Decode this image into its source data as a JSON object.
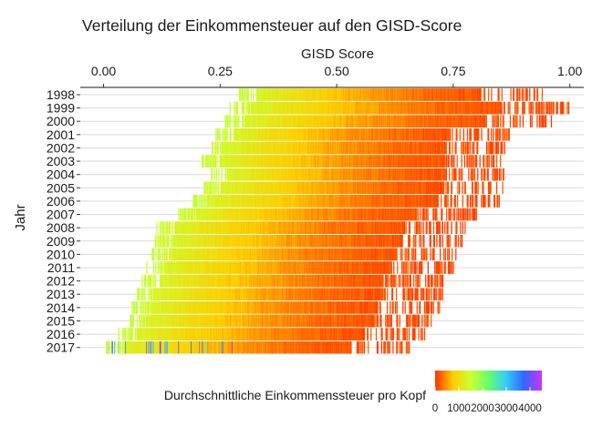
{
  "chart_data": {
    "type": "heatmap",
    "title": "Verteilung der Einkommensteuer auf den GISD-Score",
    "xlabel": "GISD Score",
    "ylabel": "Jahr",
    "x_axis_position": "top",
    "xlim": [
      -0.05,
      1.03
    ],
    "x_ticks": [
      0.0,
      0.25,
      0.5,
      0.75,
      1.0
    ],
    "x_tick_labels": [
      "0.00",
      "0.25",
      "0.50",
      "0.75",
      "1.00"
    ],
    "grid": "horizontal",
    "years": [
      "1998",
      "1999",
      "2000",
      "2001",
      "2002",
      "2003",
      "2004",
      "2005",
      "2006",
      "2007",
      "2008",
      "2009",
      "2010",
      "2011",
      "2012",
      "2013",
      "2014",
      "2015",
      "2016",
      "2017"
    ],
    "score_ranges": [
      {
        "year": "1998",
        "min": 0.29,
        "max": 0.94
      },
      {
        "year": "1999",
        "min": 0.27,
        "max": 1.0
      },
      {
        "year": "2000",
        "min": 0.26,
        "max": 0.96
      },
      {
        "year": "2001",
        "min": 0.24,
        "max": 0.87
      },
      {
        "year": "2002",
        "min": 0.23,
        "max": 0.86
      },
      {
        "year": "2003",
        "min": 0.21,
        "max": 0.86
      },
      {
        "year": "2004",
        "min": 0.23,
        "max": 0.86
      },
      {
        "year": "2005",
        "min": 0.21,
        "max": 0.86
      },
      {
        "year": "2006",
        "min": 0.19,
        "max": 0.85
      },
      {
        "year": "2007",
        "min": 0.16,
        "max": 0.8
      },
      {
        "year": "2008",
        "min": 0.11,
        "max": 0.78
      },
      {
        "year": "2009",
        "min": 0.11,
        "max": 0.77
      },
      {
        "year": "2010",
        "min": 0.1,
        "max": 0.76
      },
      {
        "year": "2011",
        "min": 0.09,
        "max": 0.75
      },
      {
        "year": "2012",
        "min": 0.08,
        "max": 0.73
      },
      {
        "year": "2013",
        "min": 0.07,
        "max": 0.73
      },
      {
        "year": "2014",
        "min": 0.06,
        "max": 0.72
      },
      {
        "year": "2015",
        "min": 0.05,
        "max": 0.71
      },
      {
        "year": "2016",
        "min": 0.03,
        "max": 0.69
      },
      {
        "year": "2017",
        "min": 0.0,
        "max": 0.66
      }
    ],
    "legend": {
      "title": "Durchschnittliche Einkommenssteuer pro Kopf",
      "position": "bottom",
      "range": [
        0,
        4500
      ],
      "ticks": [
        0,
        1000,
        2000,
        3000,
        4000
      ],
      "tick_labels": [
        "0",
        "1000",
        "2000",
        "3000",
        "4000"
      ],
      "colors": [
        "#ff3300",
        "#ffcc00",
        "#ccff33",
        "#66ff66",
        "#33ccff",
        "#3366ff",
        "#cc33ff"
      ]
    }
  }
}
